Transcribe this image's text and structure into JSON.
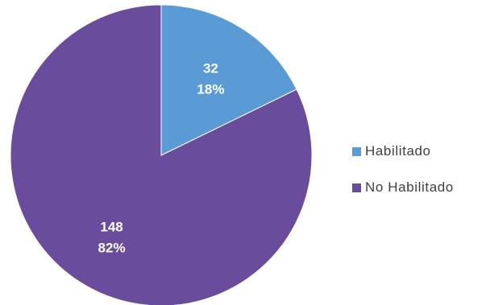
{
  "chart_data": {
    "type": "pie",
    "slices": [
      {
        "label": "Habilitado",
        "value": 32,
        "percent_label": "18%",
        "color": "#5b9bd5"
      },
      {
        "label": "No Habilitado",
        "value": 148,
        "percent_label": "82%",
        "color": "#6a4c9c"
      }
    ],
    "legend_position": "right",
    "data_labels": "value-and-percent"
  }
}
